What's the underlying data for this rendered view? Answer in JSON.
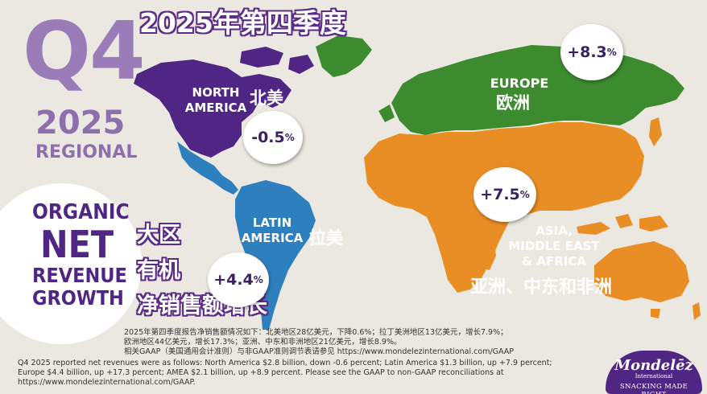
{
  "header": {
    "quarter": "Q4",
    "year": "2025",
    "regional": "REGIONAL",
    "title_zh": "2025年第四季度"
  },
  "metric": {
    "line1": "ORGANIC",
    "line2": "NET",
    "line3": "REVENUE",
    "line4": "GROWTH",
    "zh_line1": "大区",
    "zh_line2": "有机",
    "zh_line3": "净销售额增长"
  },
  "chart_data": {
    "type": "map",
    "regions": [
      {
        "name": "NORTH AMERICA",
        "name_line1": "NORTH",
        "name_line2": "AMERICA",
        "name_zh": "北美",
        "growth": "-0.5",
        "unit": "%",
        "value": -0.5,
        "color": "#4f2683"
      },
      {
        "name": "LATIN AMERICA",
        "name_line1": "LATIN",
        "name_line2": "AMERICA",
        "name_zh": "拉美",
        "growth": "+4.4",
        "unit": "%",
        "value": 4.4,
        "color": "#2e7fbd"
      },
      {
        "name": "EUROPE",
        "name_line1": "EUROPE",
        "name_zh": "欧洲",
        "growth": "+8.3",
        "unit": "%",
        "value": 8.3,
        "color": "#3d8b2f"
      },
      {
        "name": "ASIA, MIDDLE EAST & AFRICA",
        "name_line1": "ASIA,",
        "name_line2": "MIDDLE EAST",
        "name_line3": "& AFRICA",
        "name_zh": "亚洲、中东和非洲",
        "growth": "+7.5",
        "unit": "%",
        "value": 7.5,
        "color": "#e98d25"
      }
    ]
  },
  "footnotes": {
    "zh_1": "2025年第四季度报告净销售额情况如下：北美地区28亿美元，下降0.6%；拉丁美洲地区13亿美元，增长7.9%；",
    "zh_2": "欧洲地区44亿美元，增长17.3%；亚洲、中东和非洲地区21亿美元，增长8.9%。",
    "zh_3": "相关GAAP（美国通用会计准则）与非GAAP准则调节表请参见 https://www.mondelezinternational.com/GAAP",
    "en_1": "Q4 2025 reported net revenues were as follows: North America $2.8 billion, down -0.6 percent; Latin America $1.3 billion, up +7.9 percent;",
    "en_2": "Europe $4.4 billion, up +17.3 percent; AMEA $2.1 billion, up +8.9 percent. Please see the GAAP to non-GAAP reconciliations at",
    "en_3": "https://www.mondelezinternational.com/GAAP."
  },
  "logo": {
    "name": "Mondelēz",
    "sub": "International",
    "tagline": "SNACKING MADE RIGHT"
  },
  "colors": {
    "brand_purple": "#4f2683",
    "light_purple": "#9a7cb8",
    "background": "#ebe8e1"
  }
}
